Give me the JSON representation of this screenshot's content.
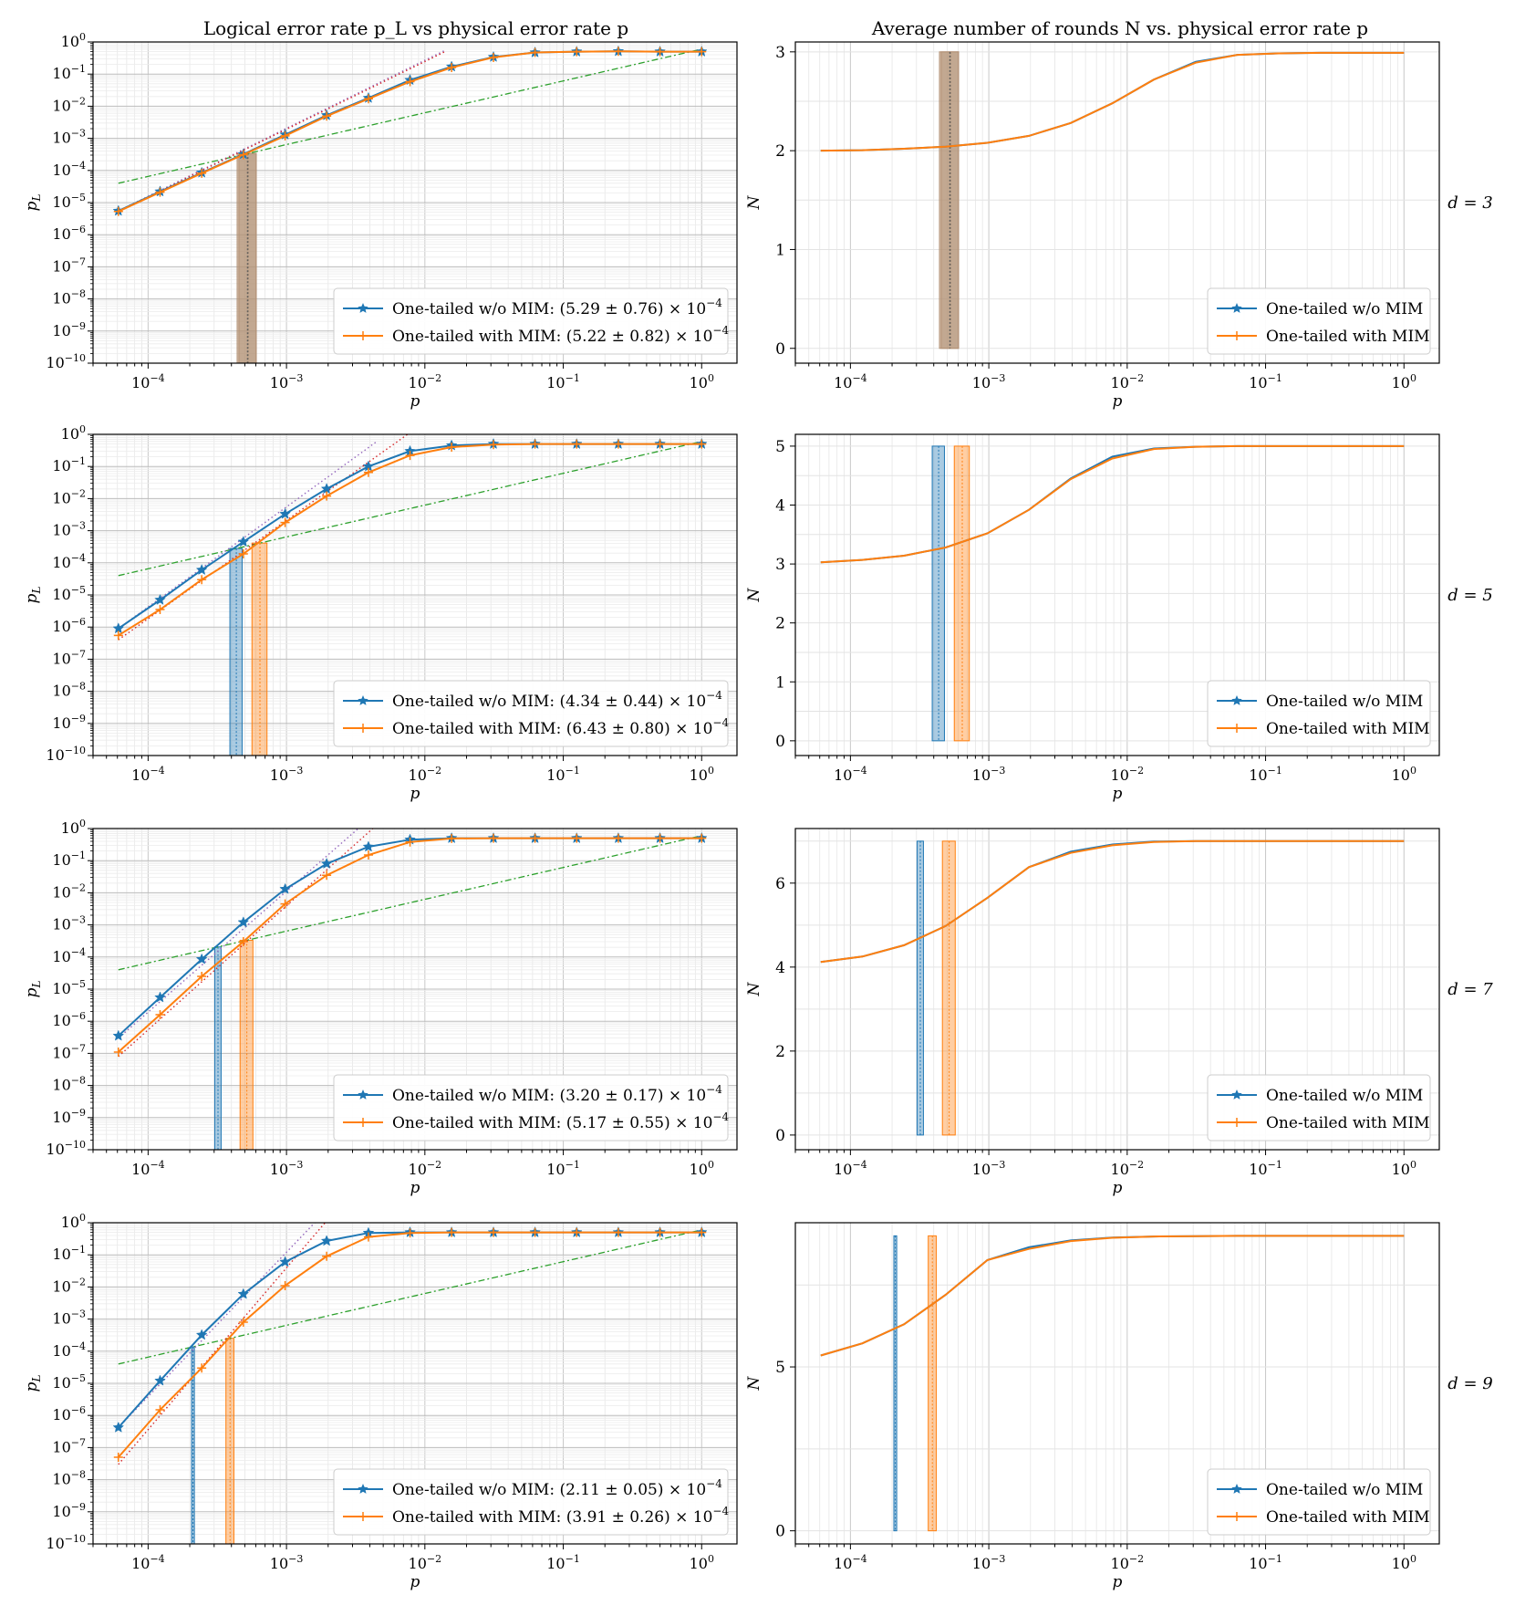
{
  "figure": {
    "left_title": "Logical error rate p_L vs physical error rate p",
    "right_title": "Average number of rounds N vs. physical error rate p",
    "xlabel": "p",
    "left_ylabel": "p_L",
    "right_ylabel": "N"
  },
  "colors": {
    "without_mim": "#1f77b4",
    "with_mim": "#ff7f0e",
    "guide_line": "#2ca02c",
    "fit_without": "#9467bd",
    "fit_with": "#d62728",
    "overlap_band": "#b39174"
  },
  "chart_data": [
    {
      "type": "line",
      "panel": "logical-error-rate",
      "row_label": "d = 3",
      "x_scale": "log",
      "y_scale": "log",
      "xlim": [
        4e-05,
        1.8
      ],
      "ylim": [
        1e-10,
        1
      ],
      "x": [
        6.1e-05,
        0.000122,
        0.000244,
        0.000488,
        0.000977,
        0.00195,
        0.00391,
        0.00781,
        0.0156,
        0.0313,
        0.0625,
        0.125,
        0.25,
        0.5,
        1.0
      ],
      "series": [
        {
          "name": "One-tailed w/o MIM",
          "legend": "One-tailed w/o MIM: (5.29 ± 0.76) × 10",
          "exponent": "−4",
          "marker": "star",
          "values": [
            5.5e-06,
            2.2e-05,
            8.5e-05,
            0.00032,
            0.0013,
            0.0052,
            0.018,
            0.065,
            0.17,
            0.34,
            0.47,
            0.5,
            0.51,
            0.5,
            0.5
          ],
          "threshold": 0.000529,
          "threshold_err": 7.6e-05
        },
        {
          "name": "One-tailed with MIM",
          "legend": "One-tailed with MIM: (5.22 ± 0.82) × 10",
          "exponent": "−4",
          "marker": "plus",
          "values": [
            5.3e-06,
            2.1e-05,
            8.2e-05,
            0.00031,
            0.0012,
            0.0049,
            0.017,
            0.058,
            0.16,
            0.33,
            0.47,
            0.5,
            0.51,
            0.5,
            0.5
          ],
          "threshold": 0.000522,
          "threshold_err": 8.2e-05
        }
      ],
      "guide_line": {
        "x": [
          6.1e-05,
          1.0
        ],
        "y": [
          4e-05,
          0.6
        ]
      },
      "fit_lines": [
        {
          "series": 0,
          "x": [
            6.1e-05,
            0.014
          ],
          "y": [
            5.5e-06,
            0.55
          ]
        },
        {
          "series": 1,
          "x": [
            6.1e-05,
            0.014
          ],
          "y": [
            5.3e-06,
            0.5
          ]
        }
      ],
      "legend_position": "lower right"
    },
    {
      "type": "line",
      "panel": "average-rounds",
      "row_label": "d = 3",
      "x_scale": "log",
      "y_scale": "linear",
      "xlim": [
        4e-05,
        1.8
      ],
      "ylim": [
        -0.15,
        3.1
      ],
      "yticks": [
        0,
        1,
        2,
        3
      ],
      "x": [
        6.1e-05,
        0.000122,
        0.000244,
        0.000488,
        0.000977,
        0.00195,
        0.00391,
        0.00781,
        0.0156,
        0.0313,
        0.0625,
        0.125,
        0.25,
        0.5,
        1.0
      ],
      "series": [
        {
          "name": "One-tailed w/o MIM",
          "values": [
            2.0,
            2.005,
            2.02,
            2.04,
            2.08,
            2.15,
            2.28,
            2.48,
            2.72,
            2.9,
            2.97,
            2.985,
            2.99,
            2.99,
            2.99
          ]
        },
        {
          "name": "One-tailed with MIM",
          "values": [
            2.0,
            2.005,
            2.02,
            2.04,
            2.08,
            2.15,
            2.28,
            2.48,
            2.72,
            2.89,
            2.97,
            2.985,
            2.99,
            2.99,
            2.99
          ]
        }
      ],
      "legend_position": "lower right"
    },
    {
      "type": "line",
      "panel": "logical-error-rate",
      "row_label": "d = 5",
      "x_scale": "log",
      "y_scale": "log",
      "xlim": [
        4e-05,
        1.8
      ],
      "ylim": [
        1e-10,
        1
      ],
      "x": [
        6.1e-05,
        0.000122,
        0.000244,
        0.000488,
        0.000977,
        0.00195,
        0.00391,
        0.00781,
        0.0156,
        0.0313,
        0.0625,
        0.125,
        0.25,
        0.5,
        1.0
      ],
      "series": [
        {
          "name": "One-tailed w/o MIM",
          "legend": "One-tailed w/o MIM: (4.34 ± 0.44) × 10",
          "exponent": "−4",
          "marker": "star",
          "values": [
            9e-07,
            7e-06,
            6e-05,
            0.00045,
            0.0033,
            0.02,
            0.1,
            0.3,
            0.45,
            0.5,
            0.5,
            0.5,
            0.5,
            0.5,
            0.5
          ],
          "threshold": 0.000434,
          "threshold_err": 4.4e-05
        },
        {
          "name": "One-tailed with MIM",
          "legend": "One-tailed with MIM: (6.43 ± 0.80) × 10",
          "exponent": "−4",
          "marker": "plus",
          "values": [
            5.5e-07,
            3.5e-06,
            3e-05,
            0.00019,
            0.0018,
            0.012,
            0.065,
            0.22,
            0.4,
            0.48,
            0.5,
            0.5,
            0.5,
            0.5,
            0.5
          ],
          "threshold": 0.000643,
          "threshold_err": 8e-05
        }
      ],
      "guide_line": {
        "x": [
          6.1e-05,
          1.0
        ],
        "y": [
          4e-05,
          0.6
        ]
      },
      "fit_lines": [
        {
          "series": 0,
          "x": [
            6.1e-05,
            0.0045
          ],
          "y": [
            9e-07,
            0.6
          ]
        },
        {
          "series": 1,
          "x": [
            6.1e-05,
            0.0075
          ],
          "y": [
            4e-07,
            1.0
          ]
        }
      ],
      "legend_position": "lower right"
    },
    {
      "type": "line",
      "panel": "average-rounds",
      "row_label": "d = 5",
      "x_scale": "log",
      "y_scale": "linear",
      "xlim": [
        4e-05,
        1.8
      ],
      "ylim": [
        -0.25,
        5.2
      ],
      "yticks": [
        0,
        1,
        2,
        3,
        4,
        5
      ],
      "x": [
        6.1e-05,
        0.000122,
        0.000244,
        0.000488,
        0.000977,
        0.00195,
        0.00391,
        0.00781,
        0.0156,
        0.0313,
        0.0625,
        0.125,
        0.25,
        0.5,
        1.0
      ],
      "series": [
        {
          "name": "One-tailed w/o MIM",
          "values": [
            3.03,
            3.07,
            3.14,
            3.28,
            3.52,
            3.92,
            4.45,
            4.82,
            4.96,
            4.99,
            5.0,
            5.0,
            5.0,
            5.0,
            5.0
          ]
        },
        {
          "name": "One-tailed with MIM",
          "values": [
            3.03,
            3.07,
            3.14,
            3.28,
            3.52,
            3.92,
            4.44,
            4.79,
            4.95,
            4.99,
            5.0,
            5.0,
            5.0,
            5.0,
            5.0
          ]
        }
      ],
      "legend_position": "lower right"
    },
    {
      "type": "line",
      "panel": "logical-error-rate",
      "row_label": "d = 7",
      "x_scale": "log",
      "y_scale": "log",
      "xlim": [
        4e-05,
        1.8
      ],
      "ylim": [
        1e-10,
        1
      ],
      "x": [
        6.1e-05,
        0.000122,
        0.000244,
        0.000488,
        0.000977,
        0.00195,
        0.00391,
        0.00781,
        0.0156,
        0.0313,
        0.0625,
        0.125,
        0.25,
        0.5,
        1.0
      ],
      "series": [
        {
          "name": "One-tailed w/o MIM",
          "legend": "One-tailed w/o MIM: (3.20 ± 0.17) × 10",
          "exponent": "−4",
          "marker": "star",
          "values": [
            3.5e-07,
            5.5e-06,
            8.5e-05,
            0.0012,
            0.013,
            0.08,
            0.27,
            0.45,
            0.5,
            0.5,
            0.5,
            0.5,
            0.5,
            0.5,
            0.5
          ],
          "threshold": 0.00032,
          "threshold_err": 1.7e-05
        },
        {
          "name": "One-tailed with MIM",
          "legend": "One-tailed with MIM: (5.17 ± 0.55) × 10",
          "exponent": "−4",
          "marker": "plus",
          "values": [
            1.1e-07,
            1.6e-06,
            2.5e-05,
            0.0003,
            0.0045,
            0.035,
            0.15,
            0.38,
            0.49,
            0.5,
            0.5,
            0.5,
            0.5,
            0.5,
            0.5
          ],
          "threshold": 0.000517,
          "threshold_err": 5.5e-05
        }
      ],
      "guide_line": {
        "x": [
          6.1e-05,
          1.0
        ],
        "y": [
          4e-05,
          0.6
        ]
      },
      "fit_lines": [
        {
          "series": 0,
          "x": [
            6.1e-05,
            0.0033
          ],
          "y": [
            3e-07,
            1.0
          ]
        },
        {
          "series": 1,
          "x": [
            6.1e-05,
            0.0042
          ],
          "y": [
            8e-08,
            1.0
          ]
        }
      ],
      "legend_position": "lower right"
    },
    {
      "type": "line",
      "panel": "average-rounds",
      "row_label": "d = 7",
      "x_scale": "log",
      "y_scale": "linear",
      "xlim": [
        4e-05,
        1.8
      ],
      "ylim": [
        -0.35,
        7.3
      ],
      "yticks": [
        0,
        2,
        4,
        6
      ],
      "x": [
        6.1e-05,
        0.000122,
        0.000244,
        0.000488,
        0.000977,
        0.00195,
        0.00391,
        0.00781,
        0.0156,
        0.0313,
        0.0625,
        0.125,
        0.25,
        0.5,
        1.0
      ],
      "series": [
        {
          "name": "One-tailed w/o MIM",
          "values": [
            4.12,
            4.25,
            4.52,
            4.98,
            5.65,
            6.38,
            6.75,
            6.92,
            6.99,
            7.0,
            7.0,
            7.0,
            7.0,
            7.0,
            7.0
          ]
        },
        {
          "name": "One-tailed with MIM",
          "values": [
            4.12,
            4.25,
            4.52,
            4.98,
            5.65,
            6.38,
            6.72,
            6.9,
            6.98,
            7.0,
            7.0,
            7.0,
            7.0,
            7.0,
            7.0
          ]
        }
      ],
      "legend_position": "lower right"
    },
    {
      "type": "line",
      "panel": "logical-error-rate",
      "row_label": "d = 9",
      "x_scale": "log",
      "y_scale": "log",
      "xlim": [
        4e-05,
        1.8
      ],
      "ylim": [
        1e-10,
        1
      ],
      "x": [
        6.1e-05,
        0.000122,
        0.000244,
        0.000488,
        0.000977,
        0.00195,
        0.00391,
        0.00781,
        0.0156,
        0.0313,
        0.0625,
        0.125,
        0.25,
        0.5,
        1.0
      ],
      "series": [
        {
          "name": "One-tailed w/o MIM",
          "legend": "One-tailed w/o MIM: (2.11 ± 0.05) × 10",
          "exponent": "−4",
          "marker": "star",
          "values": [
            4.2e-07,
            1.2e-05,
            0.00032,
            0.006,
            0.06,
            0.27,
            0.48,
            0.5,
            0.5,
            0.5,
            0.5,
            0.5,
            0.5,
            0.5,
            0.5
          ],
          "threshold": 0.000211,
          "threshold_err": 5e-06
        },
        {
          "name": "One-tailed with MIM",
          "legend": "One-tailed with MIM: (3.91 ± 0.26) × 10",
          "exponent": "−4",
          "marker": "plus",
          "values": [
            5e-08,
            1.5e-06,
            3e-05,
            0.0008,
            0.011,
            0.09,
            0.36,
            0.48,
            0.5,
            0.5,
            0.5,
            0.5,
            0.5,
            0.5,
            0.5
          ],
          "threshold": 0.000391,
          "threshold_err": 2.6e-05
        }
      ],
      "guide_line": {
        "x": [
          6.1e-05,
          1.0
        ],
        "y": [
          4e-05,
          0.6
        ]
      },
      "fit_lines": [
        {
          "series": 0,
          "x": [
            6.1e-05,
            0.0016
          ],
          "y": [
            4.2e-07,
            1.0
          ]
        },
        {
          "series": 1,
          "x": [
            6.1e-05,
            0.0019
          ],
          "y": [
            3e-08,
            1.0
          ]
        }
      ],
      "legend_position": "lower right"
    },
    {
      "type": "line",
      "panel": "average-rounds",
      "row_label": "d = 9",
      "x_scale": "log",
      "y_scale": "linear",
      "xlim": [
        4e-05,
        1.8
      ],
      "ylim": [
        -0.4,
        9.4
      ],
      "yticks": [
        0,
        5
      ],
      "x": [
        6.1e-05,
        0.000122,
        0.000244,
        0.000488,
        0.000977,
        0.00195,
        0.00391,
        0.00781,
        0.0156,
        0.0313,
        0.0625,
        0.125,
        0.25,
        0.5,
        1.0
      ],
      "series": [
        {
          "name": "One-tailed w/o MIM",
          "values": [
            5.35,
            5.72,
            6.3,
            7.2,
            8.26,
            8.65,
            8.86,
            8.95,
            8.98,
            8.99,
            9.0,
            9.0,
            9.0,
            9.0,
            9.0
          ]
        },
        {
          "name": "One-tailed with MIM",
          "values": [
            5.35,
            5.72,
            6.3,
            7.2,
            8.26,
            8.6,
            8.84,
            8.94,
            8.98,
            8.99,
            9.0,
            9.0,
            9.0,
            9.0,
            9.0
          ]
        }
      ],
      "legend_position": "lower right"
    }
  ]
}
